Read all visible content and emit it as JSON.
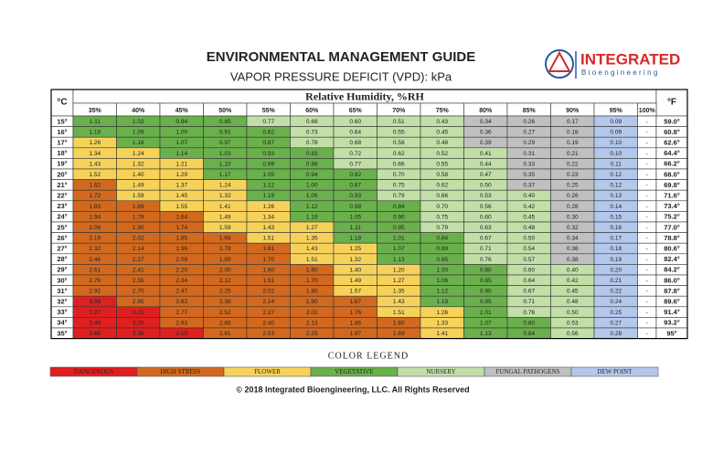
{
  "header": {
    "title": "ENVIRONMENTAL MANAGEMENT GUIDE",
    "subtitle": "VAPOR PRESSURE DEFICIT (VPD): kPa"
  },
  "logo": {
    "name": "INTEGRATED",
    "tagline": "Bioengineering"
  },
  "table": {
    "celsius_label": "°C",
    "fahrenheit_label": "°F",
    "group_header": "Relative Humidity, %RH",
    "columns": [
      "35%",
      "40%",
      "45%",
      "50%",
      "55%",
      "60%",
      "65%",
      "70%",
      "75%",
      "80%",
      "85%",
      "90%",
      "95%",
      "100%"
    ],
    "rows": [
      {
        "c": "15°",
        "values": [
          "1.11",
          "1.02",
          "0.94",
          "0.85",
          "0.77",
          "0.68",
          "0.60",
          "0.51",
          "0.43",
          "0.34",
          "0.26",
          "0.17",
          "0.09",
          "-"
        ],
        "f": "59.0°"
      },
      {
        "c": "16°",
        "values": [
          "1.18",
          "1.09",
          "1.00",
          "0.91",
          "0.82",
          "0.73",
          "0.64",
          "0.55",
          "0.45",
          "0.36",
          "0.27",
          "0.18",
          "0.09",
          "-"
        ],
        "f": "60.8°"
      },
      {
        "c": "17°",
        "values": [
          "1.26",
          "1.16",
          "1.07",
          "0.97",
          "0.87",
          "0.78",
          "0.68",
          "0.58",
          "0.48",
          "0.39",
          "0.29",
          "0.19",
          "0.10",
          "-"
        ],
        "f": "62.6°"
      },
      {
        "c": "18°",
        "values": [
          "1.34",
          "1.24",
          "1.14",
          "1.03",
          "0.93",
          "0.83",
          "0.72",
          "0.62",
          "0.52",
          "0.41",
          "0.31",
          "0.21",
          "0.10",
          "-"
        ],
        "f": "64.4°"
      },
      {
        "c": "19°",
        "values": [
          "1.43",
          "1.32",
          "1.21",
          "1.10",
          "0.99",
          "0.88",
          "0.77",
          "0.66",
          "0.55",
          "0.44",
          "0.33",
          "0.22",
          "0.11",
          "-"
        ],
        "f": "66.2°"
      },
      {
        "c": "20°",
        "values": [
          "1.52",
          "1.40",
          "1.29",
          "1.17",
          "1.05",
          "0.94",
          "0.82",
          "0.70",
          "0.58",
          "0.47",
          "0.35",
          "0.23",
          "0.12",
          "-"
        ],
        "f": "68.0°"
      },
      {
        "c": "21°",
        "values": [
          "1.62",
          "1.49",
          "1.37",
          "1.24",
          "1.12",
          "1.00",
          "0.87",
          "0.75",
          "0.62",
          "0.50",
          "0.37",
          "0.25",
          "0.12",
          "-"
        ],
        "f": "69.8°"
      },
      {
        "c": "22°",
        "values": [
          "1.72",
          "1.59",
          "1.45",
          "1.32",
          "1.19",
          "1.06",
          "0.93",
          "0.79",
          "0.66",
          "0.53",
          "0.40",
          "0.26",
          "0.13",
          "-"
        ],
        "f": "71.6°"
      },
      {
        "c": "23°",
        "values": [
          "1.83",
          "1.69",
          "1.55",
          "1.41",
          "1.26",
          "1.12",
          "0.98",
          "0.84",
          "0.70",
          "0.56",
          "0.42",
          "0.28",
          "0.14",
          "-"
        ],
        "f": "73.4°"
      },
      {
        "c": "24°",
        "values": [
          "1.94",
          "1.79",
          "1.64",
          "1.49",
          "1.34",
          "1.19",
          "1.05",
          "0.90",
          "0.75",
          "0.60",
          "0.45",
          "0.30",
          "0.15",
          "-"
        ],
        "f": "75.2°"
      },
      {
        "c": "25°",
        "values": [
          "2.06",
          "1.90",
          "1.74",
          "1.59",
          "1.43",
          "1.27",
          "1.11",
          "0.95",
          "0.79",
          "0.63",
          "0.48",
          "0.32",
          "0.16",
          "-"
        ],
        "f": "77.0°"
      },
      {
        "c": "26°",
        "values": [
          "2.19",
          "2.02",
          "1.85",
          "1.68",
          "1.51",
          "1.35",
          "1.18",
          "1.01",
          "0.84",
          "0.67",
          "0.50",
          "0.34",
          "0.17",
          "-"
        ],
        "f": "78.8°"
      },
      {
        "c": "27°",
        "values": [
          "2.32",
          "2.14",
          "1.96",
          "1.78",
          "1.61",
          "1.43",
          "1.25",
          "1.07",
          "0.89",
          "0.71",
          "0.54",
          "0.36",
          "0.18",
          "-"
        ],
        "f": "80.6°"
      },
      {
        "c": "28°",
        "values": [
          "2.46",
          "2.27",
          "2.08",
          "1.89",
          "1.70",
          "1.51",
          "1.32",
          "1.13",
          "0.95",
          "0.76",
          "0.57",
          "0.38",
          "0.19",
          "-"
        ],
        "f": "82.4°"
      },
      {
        "c": "29°",
        "values": [
          "2.61",
          "2.41",
          "2.20",
          "2.00",
          "1.80",
          "1.60",
          "1.40",
          "1.20",
          "1.00",
          "0.80",
          "0.60",
          "0.40",
          "0.20",
          "-"
        ],
        "f": "84.2°"
      },
      {
        "c": "30°",
        "values": [
          "2.76",
          "2.55",
          "2.34",
          "2.12",
          "1.91",
          "1.70",
          "1.49",
          "1.27",
          "1.06",
          "0.85",
          "0.64",
          "0.42",
          "0.21",
          "-"
        ],
        "f": "86.0°"
      },
      {
        "c": "31°",
        "values": [
          "2.92",
          "2.70",
          "2.47",
          "2.25",
          "2.02",
          "1.80",
          "1.57",
          "1.35",
          "1.12",
          "0.90",
          "0.67",
          "0.45",
          "0.22",
          "-"
        ],
        "f": "87.8°"
      },
      {
        "c": "32°",
        "values": [
          "3.09",
          "2.85",
          "2.62",
          "2.38",
          "2.14",
          "1.90",
          "1.67",
          "1.43",
          "1.19",
          "0.95",
          "0.71",
          "0.48",
          "0.24",
          "-"
        ],
        "f": "89.6°"
      },
      {
        "c": "33°",
        "values": [
          "3.27",
          "3.02",
          "2.77",
          "2.52",
          "2.27",
          "2.01",
          "1.76",
          "1.51",
          "1.26",
          "1.01",
          "0.76",
          "0.50",
          "0.25",
          "-"
        ],
        "f": "91.4°"
      },
      {
        "c": "34°",
        "values": [
          "3.46",
          "3.20",
          "2.93",
          "2.66",
          "2.40",
          "2.13",
          "1.86",
          "1.60",
          "1.33",
          "1.07",
          "0.80",
          "0.53",
          "0.27",
          "-"
        ],
        "f": "93.2°"
      },
      {
        "c": "35°",
        "values": [
          "3.66",
          "3.38",
          "3.10",
          "2.81",
          "2.53",
          "2.25",
          "1.97",
          "1.69",
          "1.41",
          "1.13",
          "0.84",
          "0.56",
          "0.28",
          "-"
        ],
        "f": "95°"
      }
    ]
  },
  "legend": {
    "title": "COLOR LEGEND",
    "items": [
      {
        "name": "DANGEROUS",
        "color": "#e02020"
      },
      {
        "name": "HIGH STRESS",
        "color": "#d2691e"
      },
      {
        "name": "FLOWER",
        "color": "#f7d25a"
      },
      {
        "name": "VEGETATIVE",
        "color": "#6ab04c"
      },
      {
        "name": "NURSERY",
        "color": "#c2dfa8"
      },
      {
        "name": "FUNGAL PATHOGENS",
        "color": "#c0c0c0"
      },
      {
        "name": "DEW POINT",
        "color": "#b4c8ec"
      }
    ]
  },
  "footer": "© 2018 Integrated Bioengineering, LLC. All Rights Reserved"
}
